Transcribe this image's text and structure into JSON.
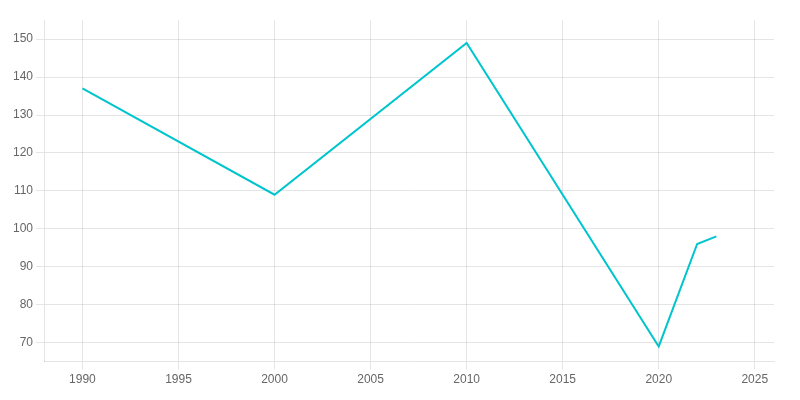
{
  "chart_data": {
    "type": "line",
    "x": [
      1990,
      2000,
      2010,
      2020,
      2022,
      2023
    ],
    "values": [
      137,
      109,
      149,
      69,
      96,
      98
    ],
    "color": "#00C5CD",
    "xlim": [
      1988,
      2026
    ],
    "ylim": [
      65,
      155
    ],
    "xticks": [
      1990,
      1995,
      2000,
      2005,
      2010,
      2015,
      2020,
      2025
    ],
    "yticks": [
      70,
      80,
      90,
      100,
      110,
      120,
      130,
      140,
      150
    ],
    "grid": true
  }
}
